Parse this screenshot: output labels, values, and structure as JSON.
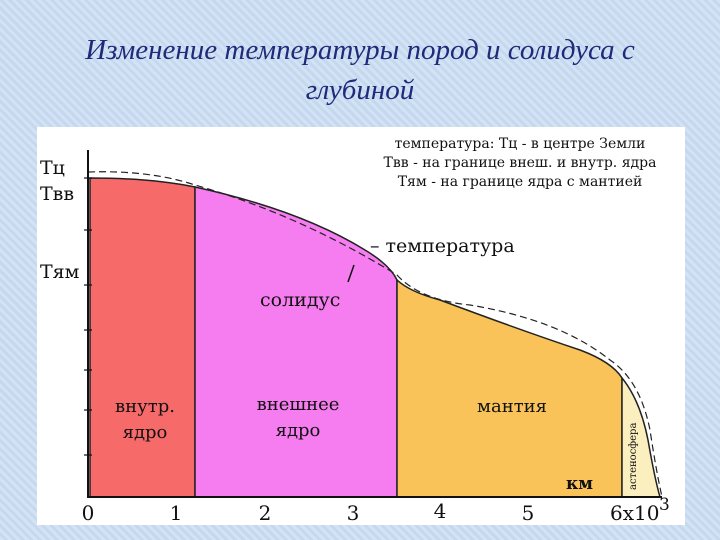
{
  "header": {
    "title": "Изменение температуры пород и солидуса с глубиной"
  },
  "diagram": {
    "legend": [
      "температура: Тц - в центре Земли",
      "Твв - на границе внеш. и внутр. ядра",
      "Тям - на границе ядра с мантией"
    ],
    "y_labels": [
      "Тц",
      "Твв",
      "Тям"
    ],
    "curve_labels": {
      "temperature": "– температура",
      "solidus": "солидус"
    },
    "regions": [
      {
        "lines": [
          "внутр.",
          "ядро"
        ]
      },
      {
        "lines": [
          "внешнее",
          "ядро"
        ]
      },
      {
        "lines": [
          "мантия"
        ]
      },
      {
        "lines": [
          "астеносфера"
        ]
      }
    ],
    "x_axis": {
      "labels": [
        "0",
        "1",
        "2",
        "3",
        "4",
        "5",
        "6x10"
      ],
      "exponent": "3",
      "unit": "км"
    }
  }
}
